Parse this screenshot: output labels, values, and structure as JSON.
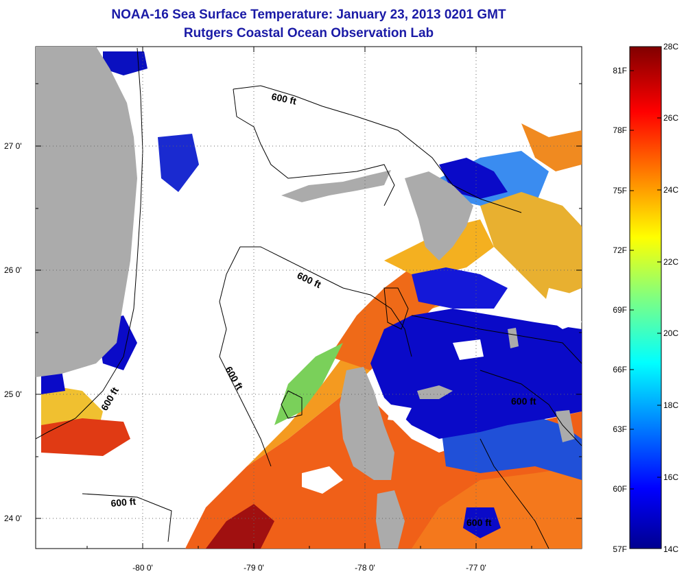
{
  "title": "NOAA-16 Sea Surface Temperature:  January 23, 2013 0201 GMT",
  "subtitle": "Rutgers Coastal Ocean Observation Lab",
  "map": {
    "lat_ticks": [
      "27 0'",
      "26 0'",
      "25 0'",
      "24 0'"
    ],
    "lon_ticks": [
      "-80 0'",
      "-79 0'",
      "-78 0'",
      "-77 0'"
    ],
    "contour_label": "600 ft",
    "colors": {
      "land": "#ababab",
      "background": "#ffffff",
      "contour": "#000000"
    }
  },
  "colorbar": {
    "celsius_labels": [
      "28C",
      "26C",
      "24C",
      "22C",
      "20C",
      "18C",
      "16C",
      "14C"
    ],
    "fahrenheit_labels": [
      "81F",
      "78F",
      "75F",
      "72F",
      "69F",
      "66F",
      "63F",
      "60F",
      "57F"
    ],
    "range_c": [
      14,
      28
    ],
    "colormap": "jet"
  }
}
